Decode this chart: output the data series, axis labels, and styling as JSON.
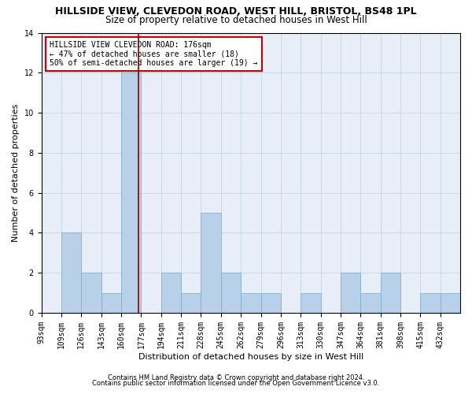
{
  "title": "HILLSIDE VIEW, CLEVEDON ROAD, WEST HILL, BRISTOL, BS48 1PL",
  "subtitle": "Size of property relative to detached houses in West Hill",
  "xlabel": "Distribution of detached houses by size in West Hill",
  "ylabel": "Number of detached properties",
  "footer1": "Contains HM Land Registry data © Crown copyright and database right 2024.",
  "footer2": "Contains public sector information licensed under the Open Government Licence v3.0.",
  "annotation_line1": "HILLSIDE VIEW CLEVEDON ROAD: 176sqm",
  "annotation_line2": "← 47% of detached houses are smaller (18)",
  "annotation_line3": "50% of semi-detached houses are larger (19) →",
  "categories": [
    "93sqm",
    "109sqm",
    "126sqm",
    "143sqm",
    "160sqm",
    "177sqm",
    "194sqm",
    "211sqm",
    "228sqm",
    "245sqm",
    "262sqm",
    "279sqm",
    "296sqm",
    "313sqm",
    "330sqm",
    "347sqm",
    "364sqm",
    "381sqm",
    "398sqm",
    "415sqm",
    "432sqm"
  ],
  "values": [
    0,
    4,
    2,
    1,
    12,
    0,
    2,
    1,
    5,
    2,
    1,
    1,
    0,
    1,
    0,
    2,
    1,
    2,
    0,
    1,
    1
  ],
  "vline_idx": 4.85,
  "bar_color": "#b8d0e8",
  "bar_edge_color": "#7aaac8",
  "vline_color": "#8b0000",
  "annotation_box_color": "#ffffff",
  "annotation_box_edge": "#cc0000",
  "ylim": [
    0,
    14
  ],
  "yticks": [
    0,
    2,
    4,
    6,
    8,
    10,
    12,
    14
  ],
  "grid_color": "#c8d4e4",
  "bg_color": "#e8eef8",
  "title_fontsize": 9,
  "subtitle_fontsize": 8.5,
  "annotation_fontsize": 7,
  "tick_fontsize": 7,
  "ylabel_fontsize": 8,
  "xlabel_fontsize": 8
}
